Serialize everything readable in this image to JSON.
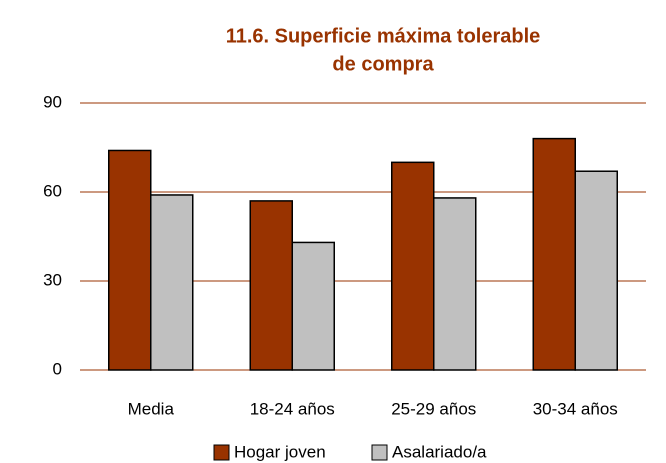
{
  "chart_data": {
    "type": "bar",
    "title": [
      "11.6. Superficie máxima tolerable",
      "de compra"
    ],
    "categories": [
      "Media",
      "18-24 años",
      "25-29 años",
      "30-34 años"
    ],
    "series": [
      {
        "name": "Hogar joven",
        "color": "#993300",
        "values": [
          74,
          57,
          70,
          78
        ]
      },
      {
        "name": "Asalariado/a",
        "color": "#c0c0c0",
        "values": [
          59,
          43,
          58,
          67
        ]
      }
    ],
    "ylim": [
      0,
      90
    ],
    "yticks": [
      0,
      30,
      60,
      90
    ],
    "grid": true,
    "grid_color": "#993300",
    "legend": "bottom"
  }
}
